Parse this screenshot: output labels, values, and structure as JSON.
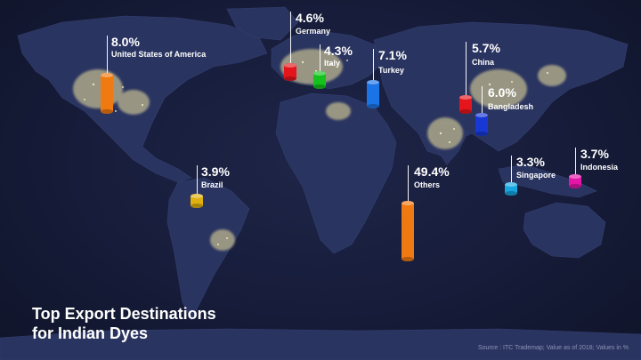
{
  "title": {
    "line1": "Top Export Destinations",
    "line2": "for Indian Dyes"
  },
  "source": "Source : ITC Trademap; Value as of 2018; Values in %",
  "markers": [
    {
      "value": "8.0%",
      "name": "United States of America",
      "color": "#f07a12"
    },
    {
      "value": "4.6%",
      "name": "Germany",
      "color": "#e5161b"
    },
    {
      "value": "4.3%",
      "name": "Italy",
      "color": "#14c21e"
    },
    {
      "value": "7.1%",
      "name": "Turkey",
      "color": "#1b74e6"
    },
    {
      "value": "5.7%",
      "name": "China",
      "color": "#e5161b"
    },
    {
      "value": "6.0%",
      "name": "Bangladesh",
      "color": "#1838d6"
    },
    {
      "value": "3.9%",
      "name": "Brazil",
      "color": "#e0b010"
    },
    {
      "value": "49.4%",
      "name": "Others",
      "color": "#f07a12"
    },
    {
      "value": "3.3%",
      "name": "Singapore",
      "color": "#18a6e0"
    },
    {
      "value": "3.7%",
      "name": "Indonesia",
      "color": "#e416a8"
    }
  ]
}
